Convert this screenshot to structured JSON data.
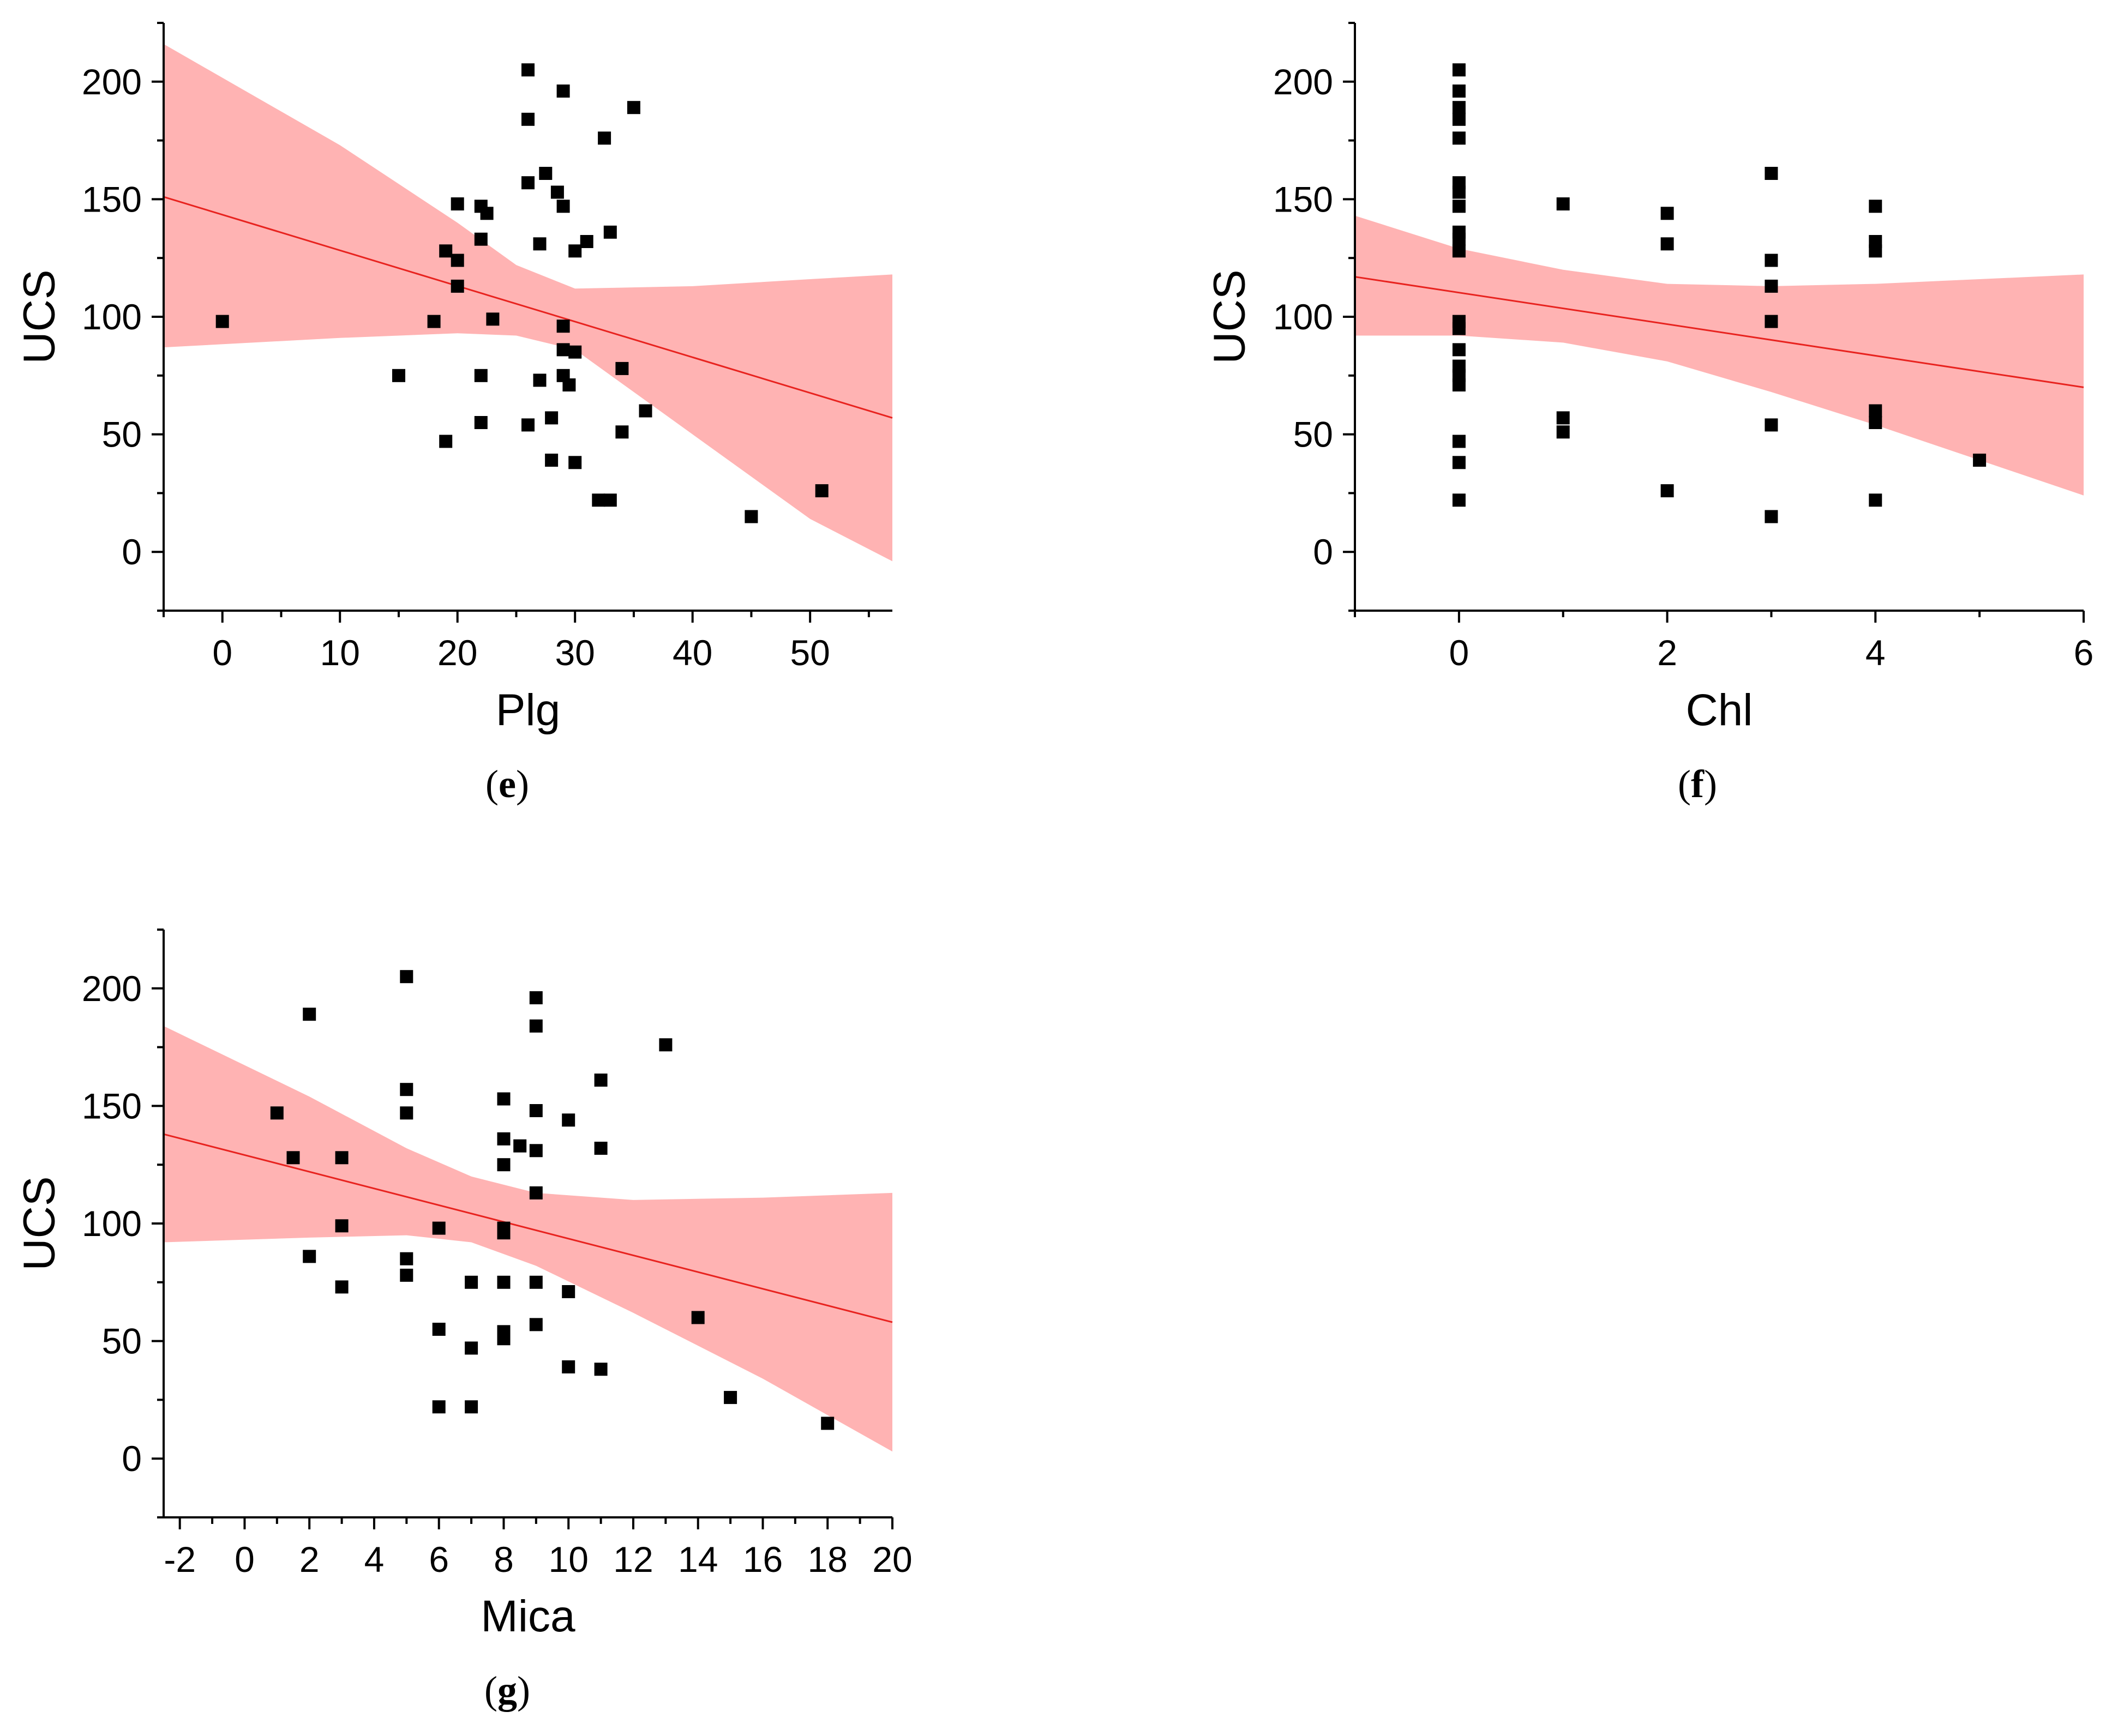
{
  "chart_data": [
    {
      "id": "e",
      "type": "scatter",
      "caption": {
        "open": "(",
        "letter": "e",
        "close": ")"
      },
      "xlabel": "Plg",
      "ylabel": "UCS",
      "xlim": [
        -5,
        57
      ],
      "ylim": [
        -25,
        225
      ],
      "xticks": [
        0,
        10,
        20,
        30,
        40,
        50
      ],
      "yticks": [
        0,
        50,
        100,
        150,
        200
      ],
      "fit_line": {
        "x": [
          -5,
          57
        ],
        "y": [
          151,
          57
        ]
      },
      "confidence_band": {
        "x": [
          -5,
          10,
          20,
          25,
          30,
          40,
          50,
          57
        ],
        "upper": [
          216,
          173,
          140,
          122,
          112,
          113,
          116,
          118
        ],
        "lower": [
          87,
          91,
          93,
          92,
          86,
          50,
          14,
          -4
        ]
      },
      "points": [
        [
          0,
          98
        ],
        [
          15,
          75
        ],
        [
          18,
          98
        ],
        [
          19,
          47
        ],
        [
          19,
          128
        ],
        [
          20,
          113
        ],
        [
          20,
          124
        ],
        [
          20,
          148
        ],
        [
          22,
          55
        ],
        [
          22,
          75
        ],
        [
          22,
          133
        ],
        [
          22,
          147
        ],
        [
          22.5,
          144
        ],
        [
          23,
          99
        ],
        [
          26,
          54
        ],
        [
          26,
          157
        ],
        [
          26,
          184
        ],
        [
          26,
          205
        ],
        [
          27,
          73
        ],
        [
          27,
          131
        ],
        [
          27.5,
          161
        ],
        [
          28,
          39
        ],
        [
          28,
          57
        ],
        [
          28.5,
          153
        ],
        [
          29,
          75
        ],
        [
          29,
          86
        ],
        [
          29,
          96
        ],
        [
          29,
          147
        ],
        [
          29,
          196
        ],
        [
          29.5,
          71
        ],
        [
          30,
          38
        ],
        [
          30,
          85
        ],
        [
          30,
          128
        ],
        [
          31,
          132
        ],
        [
          32,
          22
        ],
        [
          32.5,
          176
        ],
        [
          33,
          22
        ],
        [
          33,
          136
        ],
        [
          34,
          51
        ],
        [
          34,
          78
        ],
        [
          35,
          189
        ],
        [
          36,
          60
        ],
        [
          45,
          15
        ],
        [
          51,
          26
        ]
      ]
    },
    {
      "id": "f",
      "type": "scatter",
      "caption": {
        "open": "(",
        "letter": "f",
        "close": ")"
      },
      "xlabel": "Chl",
      "ylabel": "UCS",
      "xlim": [
        -1,
        6
      ],
      "ylim": [
        -25,
        225
      ],
      "xticks": [
        0,
        2,
        4,
        6
      ],
      "yticks": [
        0,
        50,
        100,
        150,
        200
      ],
      "fit_line": {
        "x": [
          -1,
          6
        ],
        "y": [
          117,
          70
        ]
      },
      "confidence_band": {
        "x": [
          -1,
          0,
          1,
          2,
          3,
          4,
          5,
          6
        ],
        "upper": [
          143,
          129,
          120,
          114,
          113,
          114,
          116,
          118
        ],
        "lower": [
          92,
          92,
          89,
          81,
          68,
          54,
          39,
          24
        ]
      },
      "points": [
        [
          0,
          22
        ],
        [
          0,
          38
        ],
        [
          0,
          47
        ],
        [
          0,
          71
        ],
        [
          0,
          75
        ],
        [
          0,
          79
        ],
        [
          0,
          86
        ],
        [
          0,
          95
        ],
        [
          0,
          98
        ],
        [
          0,
          128
        ],
        [
          0,
          133
        ],
        [
          0,
          136
        ],
        [
          0,
          147
        ],
        [
          0,
          153
        ],
        [
          0,
          157
        ],
        [
          0,
          176
        ],
        [
          0,
          184
        ],
        [
          0,
          189
        ],
        [
          0,
          196
        ],
        [
          0,
          205
        ],
        [
          1,
          51
        ],
        [
          1,
          57
        ],
        [
          1,
          148
        ],
        [
          2,
          26
        ],
        [
          2,
          131
        ],
        [
          2,
          144
        ],
        [
          3,
          15
        ],
        [
          3,
          54
        ],
        [
          3,
          98
        ],
        [
          3,
          113
        ],
        [
          3,
          124
        ],
        [
          3,
          161
        ],
        [
          4,
          22
        ],
        [
          4,
          55
        ],
        [
          4,
          60
        ],
        [
          4,
          128
        ],
        [
          4,
          132
        ],
        [
          4,
          147
        ],
        [
          5,
          39
        ]
      ]
    },
    {
      "id": "g",
      "type": "scatter",
      "caption": {
        "open": "(",
        "letter": "g",
        "close": ")"
      },
      "xlabel": "Mica",
      "ylabel": "UCS",
      "xlim": [
        -2.5,
        20
      ],
      "ylim": [
        -25,
        225
      ],
      "xticks": [
        -2,
        0,
        2,
        4,
        6,
        8,
        10,
        12,
        14,
        16,
        18,
        20
      ],
      "yticks": [
        0,
        50,
        100,
        150,
        200
      ],
      "fit_line": {
        "x": [
          -2.5,
          20
        ],
        "y": [
          138,
          58
        ]
      },
      "confidence_band": {
        "x": [
          -2.5,
          2,
          5,
          7,
          9,
          12,
          16,
          20
        ],
        "upper": [
          184,
          154,
          132,
          120,
          113,
          110,
          111,
          113
        ],
        "lower": [
          92,
          94,
          95,
          92,
          82,
          62,
          34,
          3
        ]
      },
      "points": [
        [
          1,
          147
        ],
        [
          1.5,
          128
        ],
        [
          2,
          86
        ],
        [
          2,
          189
        ],
        [
          3,
          73
        ],
        [
          3,
          99
        ],
        [
          3,
          128
        ],
        [
          5,
          78
        ],
        [
          5,
          85
        ],
        [
          5,
          147
        ],
        [
          5,
          157
        ],
        [
          5,
          205
        ],
        [
          6,
          22
        ],
        [
          6,
          55
        ],
        [
          6,
          98
        ],
        [
          7,
          22
        ],
        [
          7,
          47
        ],
        [
          7,
          75
        ],
        [
          8,
          51
        ],
        [
          8,
          54
        ],
        [
          8,
          75
        ],
        [
          8,
          96
        ],
        [
          8,
          98
        ],
        [
          8,
          125
        ],
        [
          8,
          136
        ],
        [
          8,
          153
        ],
        [
          8.5,
          133
        ],
        [
          9,
          57
        ],
        [
          9,
          75
        ],
        [
          9,
          113
        ],
        [
          9,
          131
        ],
        [
          9,
          148
        ],
        [
          9,
          184
        ],
        [
          9,
          196
        ],
        [
          10,
          39
        ],
        [
          10,
          71
        ],
        [
          10,
          144
        ],
        [
          11,
          38
        ],
        [
          11,
          132
        ],
        [
          11,
          161
        ],
        [
          13,
          176
        ],
        [
          14,
          60
        ],
        [
          15,
          26
        ],
        [
          18,
          15
        ]
      ]
    }
  ],
  "colors": {
    "band": "#ffb3b3",
    "fit_line": "#e8231f",
    "point": "#000000",
    "axis": "#000000"
  }
}
